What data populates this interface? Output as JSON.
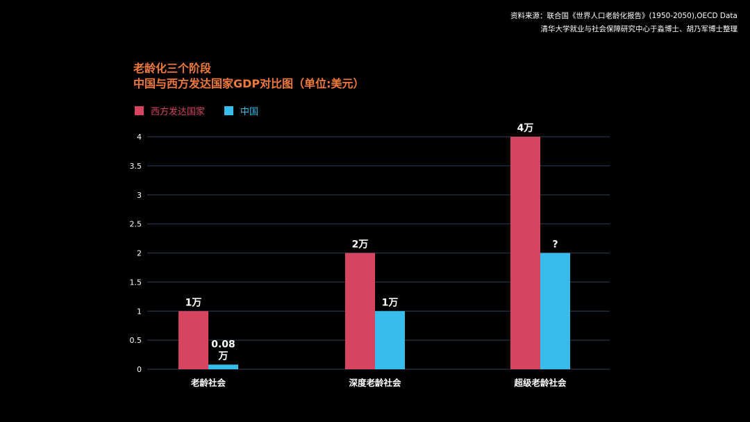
{
  "source": {
    "line1": "资料来源：联合国《世界人口老龄化报告》(1950-2050),OECD Data",
    "line2": "清华大学就业与社会保障研究中心于淼博士、胡乃军博士整理"
  },
  "colors": {
    "title": "#f07a3c",
    "west": "#d6455f",
    "china": "#38bdea",
    "grid": "#24324a",
    "text": "#ffffff"
  },
  "chart_data": {
    "type": "bar",
    "title": "老龄化三个阶段",
    "subtitle": "中国与西方发达国家GDP对比图（单位:美元）",
    "categories": [
      "老龄社会",
      "深度老龄社会",
      "超级老龄社会"
    ],
    "series": [
      {
        "name": "西方发达国家",
        "color": "#d6455f",
        "values": [
          1,
          2,
          4
        ],
        "labels": [
          "1万",
          "2万",
          "4万"
        ]
      },
      {
        "name": "中国",
        "color": "#38bdea",
        "values": [
          0.08,
          1,
          2
        ],
        "labels": [
          "0.08\n万",
          "1万",
          "?"
        ]
      }
    ],
    "yticks": [
      "0",
      "0.5",
      "1",
      "1.5",
      "2",
      "2.5",
      "3",
      "3.5",
      "4"
    ],
    "ylim": [
      0,
      4
    ],
    "grid": true,
    "legend": "top-left"
  }
}
